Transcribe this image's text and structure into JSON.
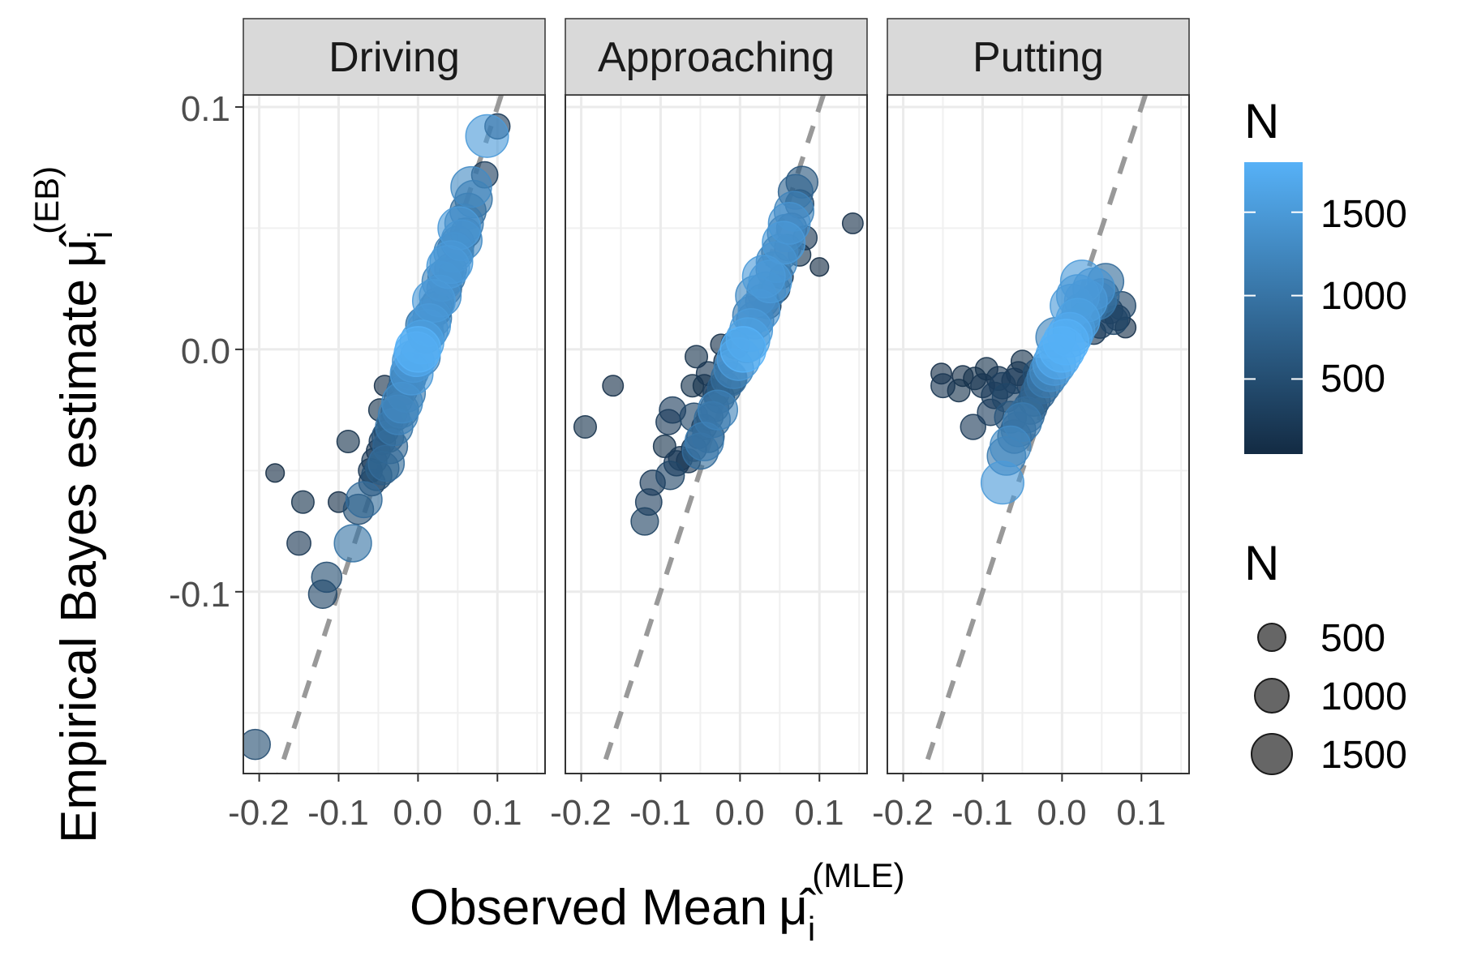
{
  "chart_data": {
    "type": "scatter",
    "facets": [
      "Driving",
      "Approaching",
      "Putting"
    ],
    "xlabel": "Observed Mean",
    "xlabel_math": {
      "symbol": "μ̂",
      "subscript": "i",
      "superscript": "(MLE)"
    },
    "ylabel": "Empirical Bayes estimate",
    "ylabel_math": {
      "symbol": "μ̂",
      "subscript": "i",
      "superscript": "(EB)"
    },
    "xlim": [
      -0.22,
      0.16
    ],
    "ylim": [
      -0.175,
      0.105
    ],
    "x_ticks": [
      -0.2,
      -0.1,
      0.0,
      0.1
    ],
    "x_tick_labels": [
      "-0.2",
      "-0.1",
      "0.0",
      "0.1"
    ],
    "y_ticks": [
      -0.1,
      0.0,
      0.1
    ],
    "y_tick_labels": [
      "-0.1",
      "0.0",
      "0.1"
    ],
    "grid": true,
    "reference_line": {
      "style": "dashed",
      "slope": 1,
      "intercept": 0,
      "color": "#999999"
    },
    "color_scale": {
      "title": "N",
      "low": "#132b43",
      "high": "#56b1f7",
      "limits": [
        50,
        1800
      ],
      "breaks": [
        500,
        1000,
        1500
      ]
    },
    "size_scale": {
      "title": "N",
      "breaks": [
        500,
        1000,
        1500
      ]
    },
    "legend_position": "right",
    "panels": [
      {
        "facet": "Driving",
        "points": [
          [
            0.1,
            0.092,
            250
          ],
          [
            0.087,
            0.088,
            1500
          ],
          [
            0.084,
            0.072,
            300
          ],
          [
            0.067,
            0.067,
            1300
          ],
          [
            0.063,
            0.057,
            900
          ],
          [
            0.058,
            0.052,
            1100
          ],
          [
            0.052,
            0.05,
            1500
          ],
          [
            0.05,
            0.044,
            700
          ],
          [
            0.045,
            0.04,
            1200
          ],
          [
            0.041,
            0.033,
            600
          ],
          [
            0.042,
            0.036,
            1500
          ],
          [
            0.036,
            0.03,
            1000
          ],
          [
            0.033,
            0.025,
            800
          ],
          [
            0.028,
            0.022,
            1400
          ],
          [
            0.022,
            0.017,
            700
          ],
          [
            0.018,
            0.013,
            1100
          ],
          [
            0.014,
            0.01,
            1500
          ],
          [
            0.01,
            0.006,
            900
          ],
          [
            0.005,
            0.003,
            1600
          ],
          [
            0.0,
            0.0,
            1800
          ],
          [
            -0.002,
            -0.002,
            1700
          ],
          [
            -0.006,
            -0.005,
            1400
          ],
          [
            -0.01,
            -0.009,
            1000
          ],
          [
            -0.015,
            -0.013,
            700
          ],
          [
            -0.02,
            -0.017,
            500
          ],
          [
            -0.025,
            -0.021,
            400
          ],
          [
            -0.03,
            -0.026,
            300
          ],
          [
            -0.035,
            -0.03,
            250
          ],
          [
            -0.04,
            -0.034,
            200
          ],
          [
            -0.045,
            -0.038,
            300
          ],
          [
            -0.05,
            -0.042,
            200
          ],
          [
            -0.055,
            -0.046,
            250
          ],
          [
            -0.06,
            -0.05,
            200
          ],
          [
            -0.052,
            -0.052,
            500
          ],
          [
            -0.058,
            -0.055,
            300
          ],
          [
            -0.045,
            -0.049,
            700
          ],
          [
            -0.04,
            -0.047,
            900
          ],
          [
            -0.035,
            -0.04,
            800
          ],
          [
            -0.03,
            -0.032,
            1000
          ],
          [
            -0.025,
            -0.027,
            1200
          ],
          [
            -0.02,
            -0.022,
            1300
          ],
          [
            -0.015,
            -0.018,
            1100
          ],
          [
            -0.042,
            -0.015,
            100
          ],
          [
            -0.048,
            -0.025,
            150
          ],
          [
            -0.028,
            -0.028,
            350
          ],
          [
            -0.088,
            -0.038,
            150
          ],
          [
            -0.068,
            -0.062,
            900
          ],
          [
            -0.075,
            -0.066,
            500
          ],
          [
            -0.1,
            -0.063,
            100
          ],
          [
            -0.082,
            -0.08,
            1000
          ],
          [
            -0.115,
            -0.094,
            500
          ],
          [
            -0.12,
            -0.101,
            400
          ],
          [
            -0.145,
            -0.063,
            150
          ],
          [
            -0.15,
            -0.08,
            200
          ],
          [
            -0.18,
            -0.051,
            50
          ],
          [
            -0.205,
            -0.163,
            500
          ],
          [
            0.07,
            0.062,
            1000
          ],
          [
            0.06,
            0.048,
            500
          ],
          [
            0.055,
            0.045,
            1300
          ],
          [
            0.047,
            0.041,
            900
          ],
          [
            0.038,
            0.034,
            1500
          ],
          [
            0.03,
            0.028,
            1200
          ],
          [
            0.025,
            0.019,
            600
          ],
          [
            0.02,
            0.02,
            1500
          ],
          [
            0.012,
            0.008,
            1300
          ],
          [
            0.008,
            0.01,
            1000
          ],
          [
            0.003,
            -0.003,
            1200
          ],
          [
            -0.008,
            -0.01,
            1500
          ],
          [
            -0.012,
            -0.012,
            800
          ],
          [
            -0.022,
            -0.025,
            900
          ],
          [
            -0.038,
            -0.036,
            600
          ],
          [
            0.042,
            0.032,
            200
          ],
          [
            0.026,
            0.015,
            200
          ]
        ]
      },
      {
        "facet": "Approaching",
        "points": [
          [
            0.142,
            0.052,
            100
          ],
          [
            0.1,
            0.034,
            50
          ],
          [
            0.078,
            0.069,
            600
          ],
          [
            0.075,
            0.06,
            400
          ],
          [
            0.082,
            0.046,
            200
          ],
          [
            0.075,
            0.039,
            150
          ],
          [
            0.068,
            0.057,
            1200
          ],
          [
            0.062,
            0.052,
            1400
          ],
          [
            0.058,
            0.048,
            1000
          ],
          [
            0.055,
            0.044,
            1500
          ],
          [
            0.05,
            0.04,
            900
          ],
          [
            0.046,
            0.036,
            1300
          ],
          [
            0.042,
            0.033,
            800
          ],
          [
            0.038,
            0.028,
            1500
          ],
          [
            0.033,
            0.024,
            1100
          ],
          [
            0.028,
            0.02,
            700
          ],
          [
            0.024,
            0.016,
            1400
          ],
          [
            0.019,
            0.012,
            1000
          ],
          [
            0.014,
            0.008,
            1500
          ],
          [
            0.01,
            0.004,
            1600
          ],
          [
            0.004,
            0.0,
            1800
          ],
          [
            -0.002,
            -0.004,
            1500
          ],
          [
            -0.008,
            -0.008,
            1200
          ],
          [
            -0.014,
            -0.012,
            900
          ],
          [
            -0.02,
            -0.016,
            700
          ],
          [
            -0.026,
            -0.02,
            500
          ],
          [
            -0.032,
            -0.024,
            400
          ],
          [
            -0.038,
            -0.028,
            300
          ],
          [
            -0.045,
            -0.032,
            250
          ],
          [
            -0.052,
            -0.036,
            200
          ],
          [
            -0.058,
            -0.041,
            250
          ],
          [
            -0.065,
            -0.046,
            200
          ],
          [
            -0.04,
            -0.036,
            600
          ],
          [
            -0.035,
            -0.029,
            900
          ],
          [
            -0.028,
            -0.025,
            1200
          ],
          [
            -0.05,
            -0.042,
            900
          ],
          [
            -0.045,
            -0.038,
            1100
          ],
          [
            -0.012,
            -0.012,
            600
          ],
          [
            -0.018,
            -0.005,
            200
          ],
          [
            -0.04,
            -0.01,
            200
          ],
          [
            -0.045,
            -0.015,
            150
          ],
          [
            -0.03,
            -0.018,
            300
          ],
          [
            -0.075,
            -0.045,
            200
          ],
          [
            -0.08,
            -0.047,
            250
          ],
          [
            -0.09,
            -0.03,
            250
          ],
          [
            -0.095,
            -0.04,
            150
          ],
          [
            -0.088,
            -0.052,
            400
          ],
          [
            -0.085,
            -0.025,
            300
          ],
          [
            -0.11,
            -0.055,
            250
          ],
          [
            -0.115,
            -0.063,
            300
          ],
          [
            -0.12,
            -0.071,
            350
          ],
          [
            -0.16,
            -0.015,
            100
          ],
          [
            -0.195,
            -0.032,
            150
          ],
          [
            -0.058,
            -0.028,
            400
          ],
          [
            -0.06,
            -0.015,
            150
          ],
          [
            -0.055,
            -0.003,
            150
          ],
          [
            0.07,
            0.065,
            800
          ],
          [
            0.065,
            0.05,
            500
          ],
          [
            0.06,
            0.042,
            300
          ],
          [
            0.052,
            0.03,
            200
          ],
          [
            0.045,
            0.025,
            400
          ],
          [
            0.035,
            0.018,
            300
          ],
          [
            0.03,
            0.03,
            1500
          ],
          [
            0.02,
            0.022,
            1300
          ],
          [
            0.015,
            0.014,
            1100
          ],
          [
            0.008,
            0.002,
            900
          ],
          [
            -0.006,
            0.002,
            400
          ],
          [
            -0.024,
            0.002,
            100
          ]
        ]
      },
      {
        "facet": "Putting",
        "points": [
          [
            0.08,
            0.009,
            100
          ],
          [
            0.075,
            0.018,
            400
          ],
          [
            0.07,
            0.013,
            250
          ],
          [
            0.065,
            0.012,
            400
          ],
          [
            0.06,
            0.016,
            300
          ],
          [
            0.055,
            0.028,
            900
          ],
          [
            0.05,
            0.022,
            800
          ],
          [
            0.045,
            0.02,
            1000
          ],
          [
            0.04,
            0.025,
            1400
          ],
          [
            0.035,
            0.018,
            900
          ],
          [
            0.03,
            0.02,
            1500
          ],
          [
            0.025,
            0.015,
            1200
          ],
          [
            0.02,
            0.012,
            1600
          ],
          [
            0.015,
            0.008,
            1400
          ],
          [
            0.01,
            0.006,
            1700
          ],
          [
            0.005,
            0.003,
            1800
          ],
          [
            0.0,
            0.0,
            1800
          ],
          [
            -0.005,
            -0.003,
            1700
          ],
          [
            -0.01,
            -0.006,
            1500
          ],
          [
            -0.015,
            -0.009,
            1300
          ],
          [
            -0.02,
            -0.012,
            1100
          ],
          [
            -0.025,
            -0.015,
            900
          ],
          [
            -0.03,
            -0.018,
            800
          ],
          [
            -0.035,
            -0.021,
            600
          ],
          [
            -0.04,
            -0.024,
            700
          ],
          [
            -0.045,
            -0.027,
            900
          ],
          [
            -0.05,
            -0.03,
            1100
          ],
          [
            -0.055,
            -0.033,
            800
          ],
          [
            -0.06,
            -0.036,
            700
          ],
          [
            -0.065,
            -0.04,
            1300
          ],
          [
            -0.07,
            -0.044,
            1100
          ],
          [
            -0.075,
            -0.055,
            1500
          ],
          [
            -0.065,
            -0.028,
            600
          ],
          [
            -0.07,
            -0.02,
            400
          ],
          [
            -0.075,
            -0.015,
            300
          ],
          [
            -0.08,
            -0.012,
            200
          ],
          [
            -0.085,
            -0.019,
            300
          ],
          [
            -0.09,
            -0.026,
            300
          ],
          [
            -0.095,
            -0.008,
            150
          ],
          [
            -0.1,
            -0.015,
            200
          ],
          [
            -0.11,
            -0.012,
            150
          ],
          [
            -0.112,
            -0.032,
            250
          ],
          [
            -0.125,
            -0.011,
            100
          ],
          [
            -0.13,
            -0.017,
            150
          ],
          [
            -0.15,
            -0.015,
            200
          ],
          [
            -0.152,
            -0.01,
            100
          ],
          [
            -0.06,
            -0.013,
            250
          ],
          [
            -0.055,
            -0.01,
            200
          ],
          [
            -0.05,
            -0.005,
            150
          ],
          [
            0.048,
            0.01,
            300
          ],
          [
            0.04,
            0.007,
            200
          ],
          [
            0.03,
            0.014,
            500
          ],
          [
            0.012,
            0.018,
            1500
          ],
          [
            0.02,
            0.022,
            1500
          ],
          [
            0.025,
            0.028,
            1500
          ],
          [
            -0.008,
            0.005,
            1200
          ],
          [
            -0.03,
            -0.01,
            500
          ],
          [
            -0.04,
            -0.015,
            300
          ]
        ]
      }
    ]
  }
}
